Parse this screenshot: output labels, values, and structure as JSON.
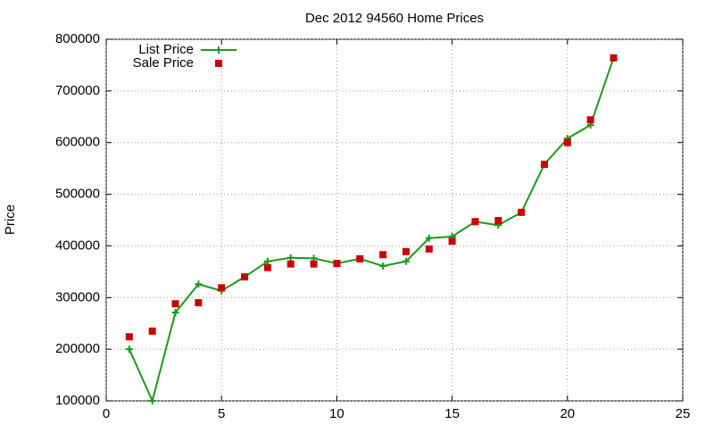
{
  "chart_data": {
    "type": "line",
    "title": "Dec 2012 94560 Home Prices",
    "y_label": "Price",
    "x": [
      1,
      2,
      3,
      4,
      5,
      6,
      7,
      8,
      9,
      10,
      11,
      12,
      13,
      14,
      15,
      16,
      17,
      18,
      19,
      20,
      21,
      22
    ],
    "series": [
      {
        "name": "List Price",
        "color": "#1a9a1a",
        "marker": "plus",
        "line": true,
        "values": [
          200000,
          100000,
          271000,
          326000,
          313000,
          340000,
          370000,
          377000,
          376000,
          366000,
          375000,
          361000,
          370000,
          415000,
          418000,
          447000,
          440000,
          465000,
          558000,
          608000,
          634000,
          764000
        ]
      },
      {
        "name": "Sale Price",
        "color": "#cc0000",
        "marker": "square",
        "line": false,
        "values": [
          224000,
          235000,
          288000,
          290000,
          319000,
          340000,
          358000,
          365000,
          365000,
          366000,
          375000,
          383000,
          389000,
          394000,
          409000,
          447000,
          449000,
          465000,
          558000,
          600000,
          644000,
          764000
        ]
      }
    ],
    "xlim": [
      0,
      25
    ],
    "xticks": [
      0,
      5,
      10,
      15,
      20,
      25
    ],
    "ylim": [
      100000,
      800000
    ],
    "yticks": [
      100000,
      200000,
      300000,
      400000,
      500000,
      600000,
      700000,
      800000
    ],
    "grid": true,
    "legend": "top-left"
  }
}
